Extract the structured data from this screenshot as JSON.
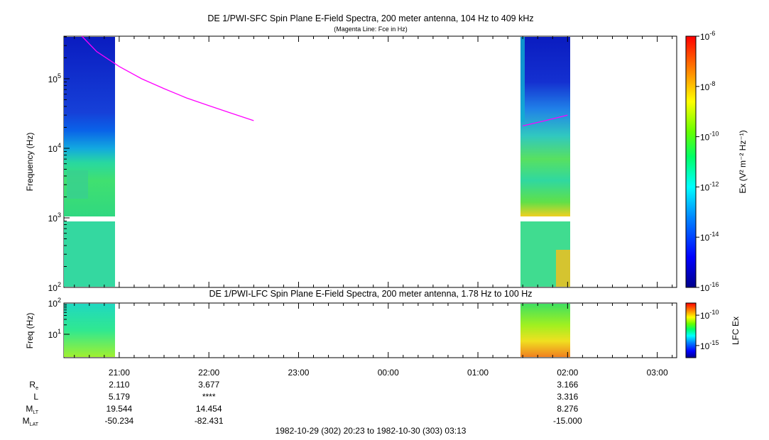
{
  "chart_data": [
    {
      "type": "heatmap",
      "title": "DE 1/PWI-SFC  Spin Plane E-Field Spectra, 200 meter antenna, 104 Hz to 409 kHz",
      "subtitle": "(Magenta Line: Fce in Hz)",
      "ylabel": "Frequency (Hz)",
      "yscale": "log",
      "ylim": [
        100,
        409000
      ],
      "yticks": [
        {
          "base": "10",
          "exp": "2"
        },
        {
          "base": "10",
          "exp": "3"
        },
        {
          "base": "10",
          "exp": "4"
        },
        {
          "base": "10",
          "exp": "5"
        }
      ],
      "colorbar": {
        "label": "Ex (V² m⁻² Hz⁻¹)",
        "scale": "log",
        "range": [
          1e-16,
          1e-06
        ],
        "ticks": [
          {
            "base": "10",
            "exp": "-6"
          },
          {
            "base": "10",
            "exp": "-8"
          },
          {
            "base": "10",
            "exp": "-10"
          },
          {
            "base": "10",
            "exp": "-12"
          },
          {
            "base": "10",
            "exp": "-14"
          },
          {
            "base": "10",
            "exp": "-16"
          }
        ]
      },
      "data_intervals_ut": [
        [
          "20:23",
          "20:57"
        ],
        [
          "01:28",
          "02:03"
        ]
      ],
      "series": [
        {
          "name": "Fce in Hz",
          "color": "#ff00ff",
          "points": [
            {
              "t": "20:35",
              "f": 409000
            },
            {
              "t": "20:45",
              "f": 245000
            },
            {
              "t": "21:00",
              "f": 150000
            },
            {
              "t": "21:15",
              "f": 100000
            },
            {
              "t": "21:30",
              "f": 72000
            },
            {
              "t": "21:45",
              "f": 53000
            },
            {
              "t": "22:00",
              "f": 41000
            },
            {
              "t": "22:15",
              "f": 32000
            },
            {
              "t": "22:30",
              "f": 25000
            },
            {
              "t": "01:30",
              "f": 21000
            },
            {
              "t": "01:45",
              "f": 25000
            },
            {
              "t": "02:00",
              "f": 30000
            }
          ]
        }
      ]
    },
    {
      "type": "heatmap",
      "title": "DE 1/PWI-LFC  Spin Plane E-Field Spectra, 200 meter antenna, 1.78 Hz to 100 Hz",
      "ylabel": "Freq (Hz)",
      "yscale": "log",
      "ylim": [
        1.78,
        100
      ],
      "yticks": [
        {
          "base": "10",
          "exp": "1"
        },
        {
          "base": "10",
          "exp": "2"
        }
      ],
      "colorbar": {
        "label": "LFC Ex",
        "scale": "log",
        "range": [
          1e-17,
          1e-08
        ],
        "ticks": [
          {
            "base": "10",
            "exp": "-10"
          },
          {
            "base": "10",
            "exp": "-15"
          }
        ]
      },
      "data_intervals_ut": [
        [
          "20:23",
          "20:57"
        ],
        [
          "01:28",
          "02:03"
        ]
      ]
    }
  ],
  "x_axis": {
    "start": "20:23",
    "end": "03:13",
    "tick_labels": [
      "21:00",
      "22:00",
      "23:00",
      "00:00",
      "01:00",
      "02:00",
      "03:00"
    ]
  },
  "ephemeris": {
    "rows": [
      {
        "label": "R",
        "sub": "e",
        "values": [
          "2.110",
          "3.677",
          "",
          "",
          "",
          "3.166",
          ""
        ]
      },
      {
        "label": "L",
        "sub": "",
        "values": [
          "5.179",
          "****",
          "",
          "",
          "",
          "3.316",
          ""
        ]
      },
      {
        "label": "M",
        "sub": "LT",
        "values": [
          "19.544",
          "14.454",
          "",
          "",
          "",
          "8.276",
          ""
        ]
      },
      {
        "label": "M",
        "sub": "LAT",
        "values": [
          "-50.234",
          "-82.431",
          "",
          "",
          "",
          "-15.000",
          ""
        ]
      }
    ]
  },
  "time_range": "1982-10-29 (302) 20:23 to 1982-10-30 (303) 03:13",
  "colors": {
    "fce_line": "#ff00ff",
    "background_fill": "#0a24c8",
    "colormap": [
      "#00008b",
      "#0000ff",
      "#0088ff",
      "#00ffff",
      "#00ff66",
      "#66ff00",
      "#ffff00",
      "#ff8800",
      "#ff0000"
    ]
  }
}
